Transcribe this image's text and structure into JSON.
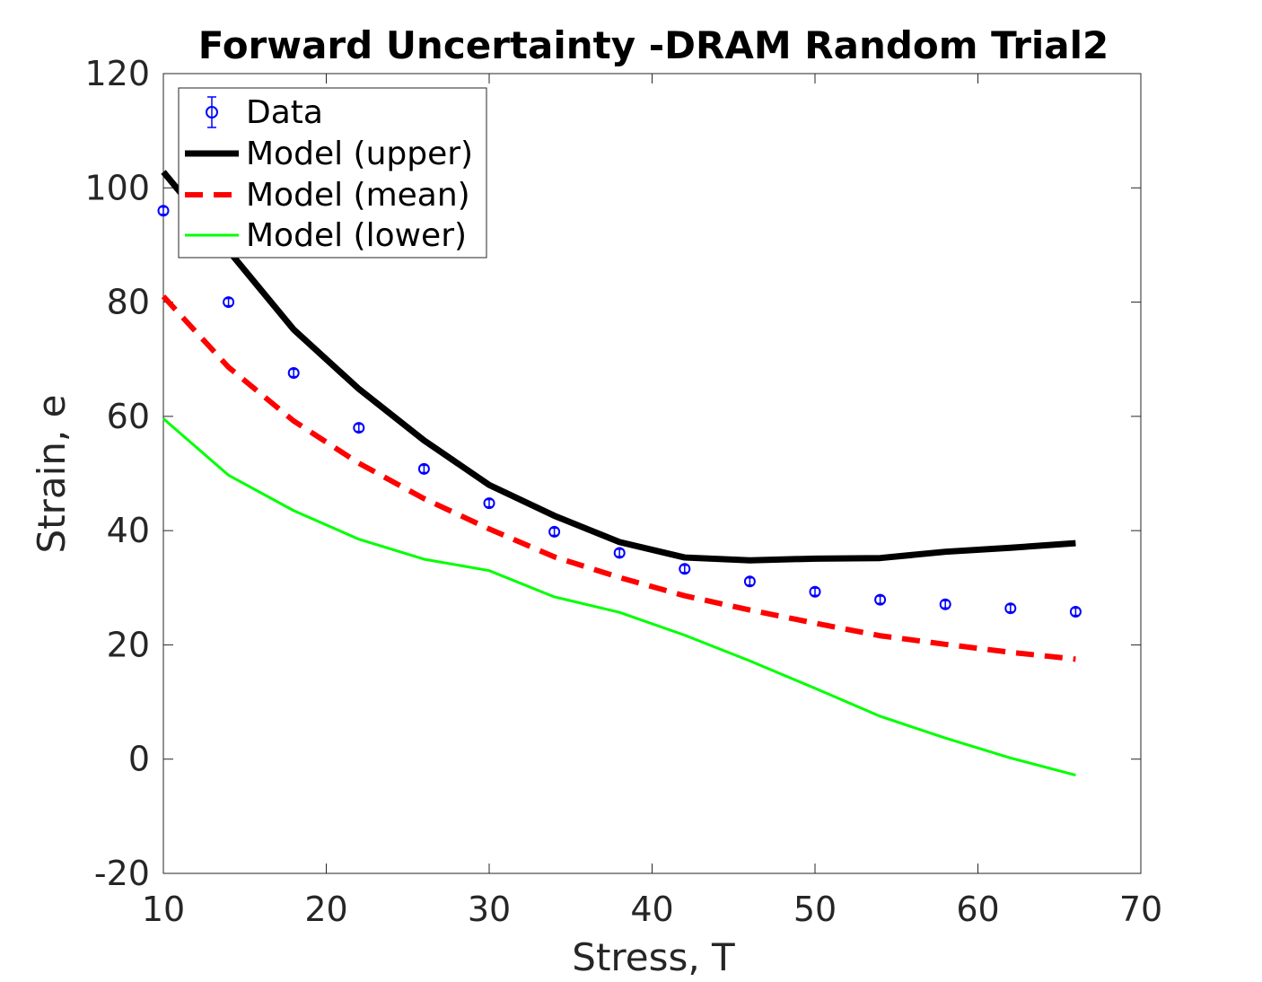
{
  "chart_data": {
    "type": "line",
    "title": "Forward Uncertainty -DRAM Random Trial2",
    "xlabel": "Stress, T",
    "ylabel": "Strain, e",
    "xlim": [
      10,
      70
    ],
    "ylim": [
      -20,
      120
    ],
    "xticks": [
      10,
      20,
      30,
      40,
      50,
      60,
      70
    ],
    "yticks": [
      -20,
      0,
      20,
      40,
      60,
      80,
      100,
      120
    ],
    "grid": false,
    "legend_position": "top-left",
    "x": [
      10,
      14,
      18,
      22,
      26,
      30,
      34,
      38,
      42,
      46,
      50,
      54,
      58,
      62,
      66
    ],
    "data": {
      "name": "Data",
      "color": "#0000ff",
      "values": [
        96,
        80,
        67.6,
        58,
        50.8,
        44.8,
        39.8,
        36.1,
        33.3,
        31.1,
        29.3,
        27.9,
        27.1,
        26.4,
        25.8
      ]
    },
    "series": [
      {
        "name": "Model (upper)",
        "color": "#000000",
        "style": "solid-thick",
        "values": [
          102.8,
          89,
          75.2,
          64.8,
          55.8,
          48,
          42.6,
          38,
          35.3,
          34.8,
          35.1,
          35.2,
          36.3,
          37,
          37.8
        ]
      },
      {
        "name": "Model (mean)",
        "color": "#ff0000",
        "style": "dashed",
        "values": [
          81,
          68.6,
          59.2,
          51.8,
          45.6,
          40.3,
          35.4,
          31.8,
          28.6,
          26.1,
          23.8,
          21.6,
          20.1,
          18.7,
          17.5
        ]
      },
      {
        "name": "Model (lower)",
        "color": "#00ff00",
        "style": "solid-thin",
        "values": [
          59.6,
          49.7,
          43.5,
          38.5,
          35,
          33,
          28.4,
          25.7,
          21.7,
          17.2,
          12.4,
          7.5,
          3.7,
          0.2,
          -2.8
        ]
      }
    ]
  }
}
